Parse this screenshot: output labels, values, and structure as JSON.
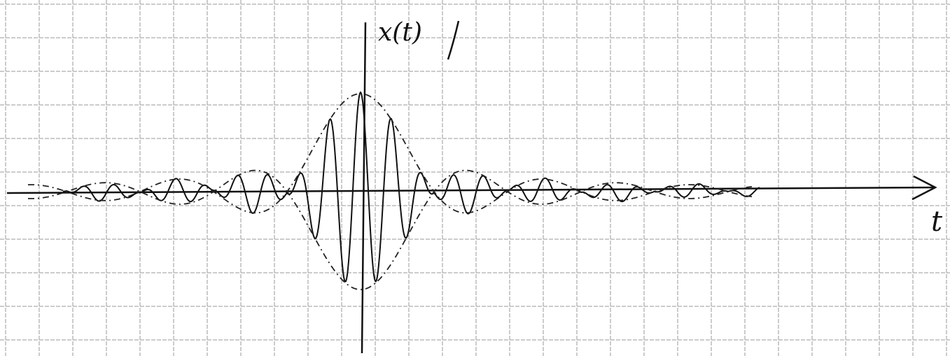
{
  "labels": {
    "y_axis": "x(t)",
    "x_axis": "t"
  }
}
